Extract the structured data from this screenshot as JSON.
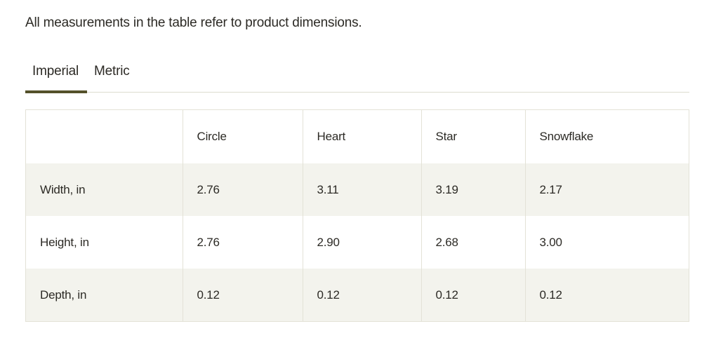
{
  "note": "All measurements in the table refer to product dimensions.",
  "tabs": [
    {
      "label": "Imperial",
      "active": true
    },
    {
      "label": "Metric",
      "active": false
    }
  ],
  "colors": {
    "accent": "#54512a",
    "stripe": "#f3f3ed",
    "border": "#e3e2d7",
    "text": "#2c2a25"
  },
  "table": {
    "headers": [
      "",
      "Circle",
      "Heart",
      "Star",
      "Snowflake"
    ],
    "rows": [
      {
        "label": "Width, in",
        "values": [
          "2.76",
          "3.11",
          "3.19",
          "2.17"
        ]
      },
      {
        "label": "Height, in",
        "values": [
          "2.76",
          "2.90",
          "2.68",
          "3.00"
        ]
      },
      {
        "label": "Depth, in",
        "values": [
          "0.12",
          "0.12",
          "0.12",
          "0.12"
        ]
      }
    ]
  }
}
